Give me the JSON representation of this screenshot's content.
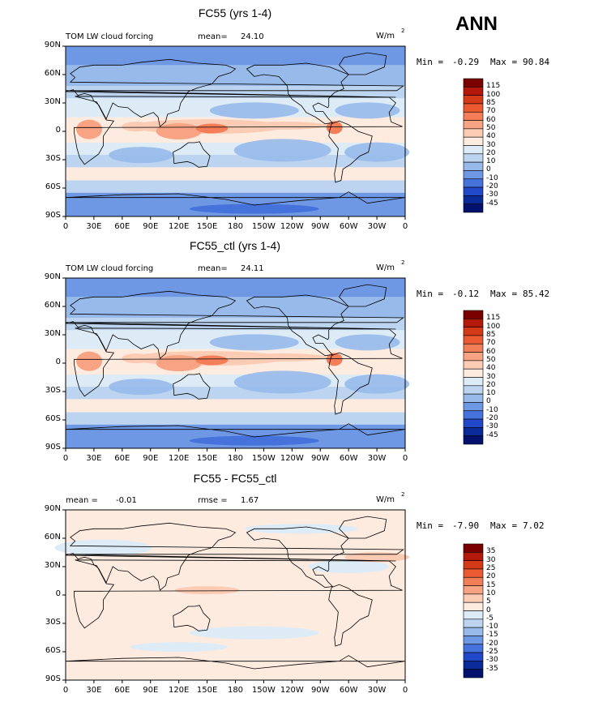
{
  "season": "ANN",
  "lon_ticks": [
    "0",
    "30E",
    "60E",
    "90E",
    "120E",
    "150E",
    "180",
    "150W",
    "120W",
    "90W",
    "60W",
    "30W",
    "0"
  ],
  "lat_ticks": [
    "90N",
    "60N",
    "30N",
    "0",
    "30S",
    "60S",
    "90S"
  ],
  "panels": [
    {
      "title": "FC55 (yrs 1-4)",
      "left_label": "TOM LW cloud forcing",
      "mean_label": "mean=",
      "mean_value": "24.10",
      "units": "W/m",
      "units_sup": "2",
      "min_label": "Min =",
      "min_value": "-0.29",
      "max_label": "Max =",
      "max_value": "90.84",
      "levels": [
        "115",
        "100",
        "85",
        "70",
        "60",
        "50",
        "40",
        "30",
        "20",
        "10",
        "0",
        "-10",
        "-20",
        "-30",
        "-45"
      ]
    },
    {
      "title": "FC55_ctl (yrs 1-4)",
      "left_label": "TOM LW cloud forcing",
      "mean_label": "mean=",
      "mean_value": "24.11",
      "units": "W/m",
      "units_sup": "2",
      "min_label": "Min =",
      "min_value": "-0.12",
      "max_label": "Max =",
      "max_value": "85.42",
      "levels": [
        "115",
        "100",
        "85",
        "70",
        "60",
        "50",
        "40",
        "30",
        "20",
        "10",
        "0",
        "-10",
        "-20",
        "-30",
        "-45"
      ]
    },
    {
      "title": "FC55 - FC55_ctl",
      "left_label": "mean =",
      "left_value": "-0.01",
      "mean_label": "rmse =",
      "mean_value": "1.67",
      "units": "W/m",
      "units_sup": "2",
      "min_label": "Min =",
      "min_value": "-7.90",
      "max_label": "Max =",
      "max_value": "7.02",
      "levels": [
        "35",
        "30",
        "25",
        "20",
        "15",
        "10",
        "5",
        "0",
        "-5",
        "-10",
        "-15",
        "-20",
        "-25",
        "-30",
        "-35"
      ]
    }
  ],
  "colorbar_colors": [
    "#7a0000",
    "#b41808",
    "#d43a18",
    "#ec5a32",
    "#f47e58",
    "#f8a384",
    "#fbcbb4",
    "#fdebe0",
    "#ddebf6",
    "#bcd4f0",
    "#97baea",
    "#6f98e4",
    "#4672dc",
    "#2148c8",
    "#0a2a9a",
    "#00126e"
  ],
  "chart_data": [
    {
      "type": "heatmap",
      "title": "FC55 (yrs 1-4)",
      "subtitle": "TOM LW cloud forcing",
      "units": "W/m2",
      "mean": 24.1,
      "min": -0.29,
      "max": 90.84,
      "contour_levels": [
        -45,
        -30,
        -20,
        -10,
        0,
        10,
        20,
        30,
        40,
        50,
        60,
        70,
        85,
        100,
        115
      ],
      "xlim": [
        0,
        360
      ],
      "ylim": [
        -90,
        90
      ]
    },
    {
      "type": "heatmap",
      "title": "FC55_ctl (yrs 1-4)",
      "subtitle": "TOM LW cloud forcing",
      "units": "W/m2",
      "mean": 24.11,
      "min": -0.12,
      "max": 85.42,
      "contour_levels": [
        -45,
        -30,
        -20,
        -10,
        0,
        10,
        20,
        30,
        40,
        50,
        60,
        70,
        85,
        100,
        115
      ],
      "xlim": [
        0,
        360
      ],
      "ylim": [
        -90,
        90
      ]
    },
    {
      "type": "heatmap",
      "title": "FC55 - FC55_ctl",
      "units": "W/m2",
      "mean": -0.01,
      "rmse": 1.67,
      "min": -7.9,
      "max": 7.02,
      "contour_levels": [
        -35,
        -30,
        -25,
        -20,
        -15,
        -10,
        -5,
        0,
        5,
        10,
        15,
        20,
        25,
        30,
        35
      ],
      "xlim": [
        0,
        360
      ],
      "ylim": [
        -90,
        90
      ]
    }
  ]
}
